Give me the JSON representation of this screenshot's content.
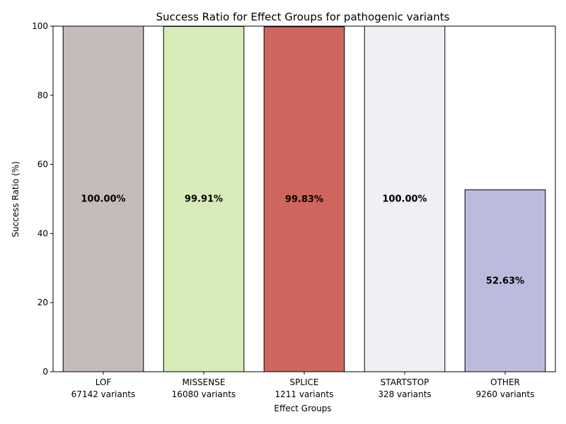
{
  "chart_data": {
    "type": "bar",
    "title": "Success Ratio for Effect Groups for pathogenic variants",
    "xlabel": "Effect Groups",
    "ylabel": "Success Ratio (%)",
    "ylim": [
      0,
      100
    ],
    "yticks": [
      0,
      20,
      40,
      60,
      80,
      100
    ],
    "grid": false,
    "categories": [
      "LOF",
      "MISSENSE",
      "SPLICE",
      "STARTSTOP",
      "OTHER"
    ],
    "subcategories": [
      "67142 variants",
      "16080 variants",
      "1211 variants",
      "328 variants",
      "9260 variants"
    ],
    "values": [
      100.0,
      99.91,
      99.83,
      100.0,
      52.63
    ],
    "value_labels": [
      "100.00%",
      "99.91%",
      "99.83%",
      "100.00%",
      "52.63%"
    ],
    "colors": [
      "#c4bcbb",
      "#d7ecb8",
      "#cf665d",
      "#efeff5",
      "#bbbcdd"
    ],
    "edge_color": "#000000"
  }
}
